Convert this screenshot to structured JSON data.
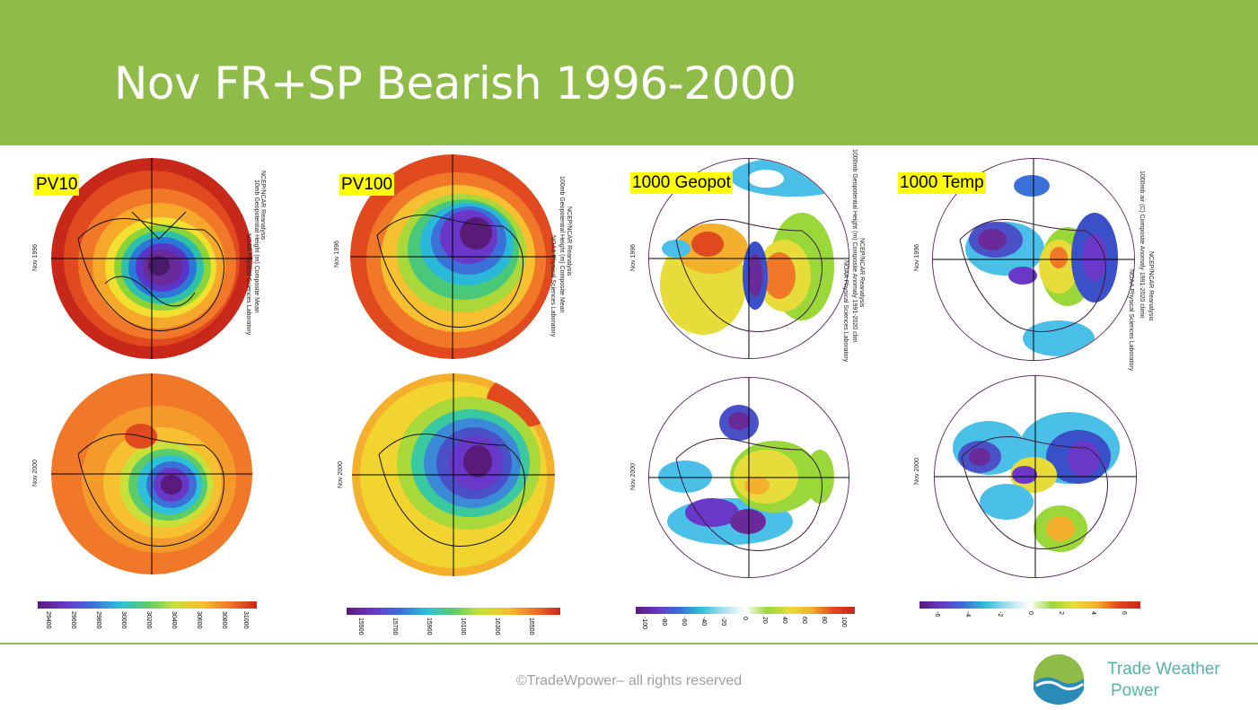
{
  "title": "Nov FR+SP Bearish 1996-2000",
  "colors": {
    "header": "#8fbb48",
    "tag_bg": "#ffff00",
    "brand": "#56b4a8"
  },
  "panels": [
    {
      "tag": "PV10",
      "side_text": "10mb Geopotential Height (m) Composite Mean",
      "source": "NCEP/NCAR Reanalysis",
      "lab": "NOAA Physical Sciences Laboratory",
      "years": [
        "Nov 1996",
        "Nov 2000"
      ],
      "colorbar_ticks": [
        "29400",
        "29600",
        "29800",
        "30000",
        "30200",
        "30400",
        "30600",
        "30800",
        "31000"
      ]
    },
    {
      "tag": "PV100",
      "side_text": "100mb Geopotential Height (m) Composite Mean",
      "source": "NCEP/NCAR Reanalysis",
      "lab": "NOAA Physical Sciences Laboratory",
      "years": [
        "Nov 1996",
        "Nov 2000"
      ],
      "colorbar_ticks": [
        "15500",
        "15700",
        "15900",
        "16100",
        "16300",
        "16500"
      ]
    },
    {
      "tag": "1000 Geopot",
      "side_text": "1000mb Geopotential Height (m) Composite Anomaly 1991-2020 clim",
      "source": "NCEP/NCAR Reanalysis",
      "lab": "NOAA Physical Sciences Laboratory",
      "years": [
        "Nov 1996",
        "Nov 2000"
      ],
      "colorbar_ticks": [
        "-100",
        "-80",
        "-60",
        "-40",
        "-20",
        "0",
        "20",
        "40",
        "60",
        "80",
        "100"
      ]
    },
    {
      "tag": "1000 Temp",
      "side_text": "1000mb air (C) Composite Anomaly 1991-2020 climo",
      "source": "NCEP/NCAR Reanalysis",
      "lab": "NOAA Physical Sciences Laboratory",
      "years": [
        "Nov 1996",
        "Nov 2000"
      ],
      "colorbar_ticks": [
        "-6",
        "-4",
        "-2",
        "0",
        "2",
        "4",
        "6"
      ]
    }
  ],
  "footer": {
    "copyright": "©TradeWpower– all rights reserved",
    "brand_line1": "Trade Weather",
    "brand_line2": "Power"
  }
}
